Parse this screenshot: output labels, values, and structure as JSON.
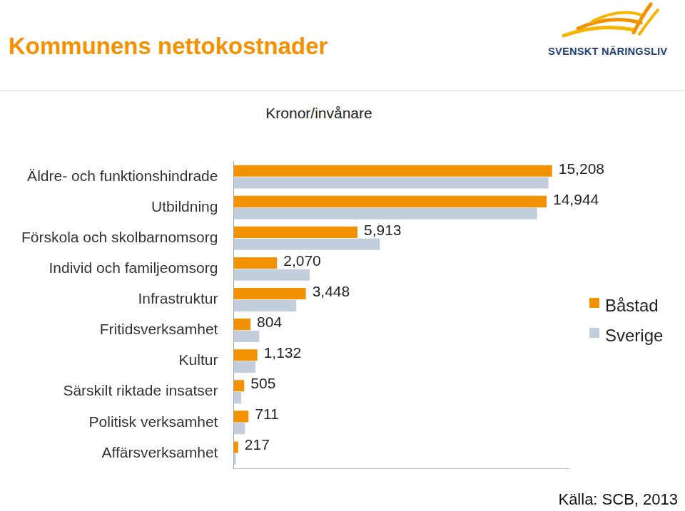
{
  "chart_data": {
    "type": "bar",
    "orientation": "horizontal",
    "title": "Kommunens nettokostnader",
    "subtitle": "Kronor/invånare",
    "annotations": [
      "SVENSKT NÄRINGSLIV",
      "Källa: SCB, 2013"
    ],
    "categories": [
      "Äldre- och funktionshindrade",
      "Utbildning",
      "Förskola och skolbarnomsorg",
      "Individ och familjeomsorg",
      "Infrastruktur",
      "Fritidsverksamhet",
      "Kultur",
      "Särskilt riktade insatser",
      "Politisk verksamhet",
      "Affärsverksamhet"
    ],
    "series": [
      {
        "name": "Båstad",
        "color": "#F39200",
        "values": [
          15208,
          14944,
          5913,
          2070,
          3448,
          804,
          1132,
          505,
          711,
          217
        ],
        "value_labels": [
          "15,208",
          "14,944",
          "5,913",
          "2,070",
          "3,448",
          "804",
          "1,132",
          "505",
          "711",
          "217"
        ],
        "data_labels": true
      },
      {
        "name": "Sverige",
        "color": "#C2CEDB",
        "values": [
          15030,
          14490,
          6980,
          3630,
          2990,
          1220,
          1040,
          360,
          540,
          110
        ],
        "data_labels": false
      }
    ],
    "xlim": [
      0,
      16000
    ],
    "xticks": [],
    "grid": false,
    "legend": "right",
    "tick_labels": "y"
  }
}
